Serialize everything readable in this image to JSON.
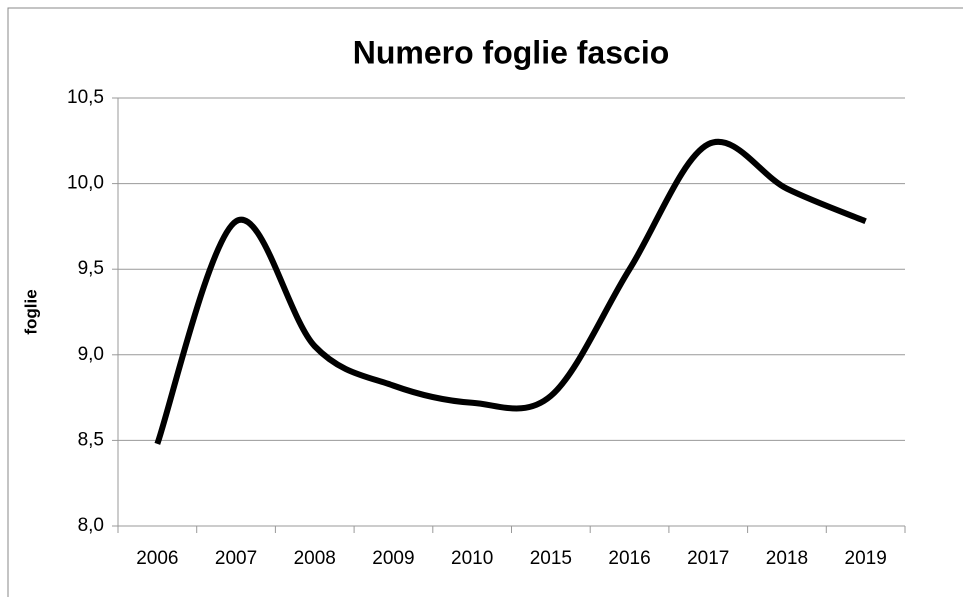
{
  "chart_data": {
    "type": "line",
    "title": "Numero foglie fascio",
    "ylabel": "foglie",
    "categories": [
      "2006",
      "2007",
      "2008",
      "2009",
      "2010",
      "2015",
      "2016",
      "2017",
      "2018",
      "2019"
    ],
    "values": [
      8.48,
      9.78,
      9.05,
      8.82,
      8.72,
      8.76,
      9.5,
      10.23,
      9.97,
      9.78
    ],
    "color": "#000000",
    "ylim": [
      8,
      10.5
    ],
    "yticks": [
      {
        "value": 8,
        "label": "8,0"
      },
      {
        "value": 8.5,
        "label": "8,5"
      },
      {
        "value": 9,
        "label": "9,0"
      },
      {
        "value": 9.5,
        "label": "9,5"
      },
      {
        "value": 10,
        "label": "10,0"
      },
      {
        "value": 10.5,
        "label": "10,5"
      }
    ],
    "grid": true
  }
}
